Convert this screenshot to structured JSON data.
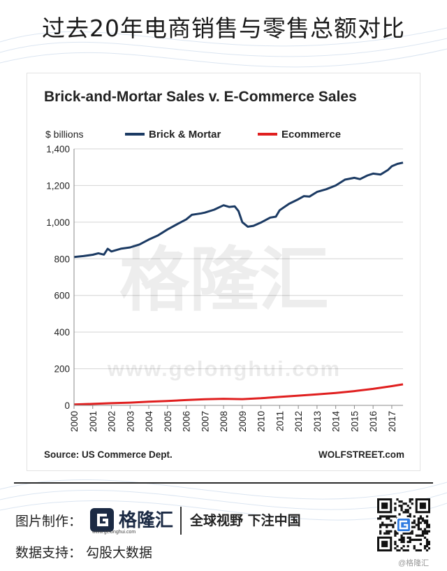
{
  "title": "过去20年电商销售与零售总额对比",
  "chart_data": {
    "type": "line",
    "title": "Brick-and-Mortar Sales v. E-Commerce Sales",
    "ylabel": "$ billions",
    "xlabel": "",
    "ylim": [
      0,
      1400
    ],
    "yticks": [
      "0",
      "200",
      "400",
      "600",
      "800",
      "1,000",
      "1,200",
      "1,400"
    ],
    "xlim": [
      2000,
      2017.6
    ],
    "xticks": [
      "2000",
      "2001",
      "2002",
      "2003",
      "2004",
      "2005",
      "2006",
      "2007",
      "2008",
      "2009",
      "2010",
      "2011",
      "2012",
      "2013",
      "2014",
      "2015",
      "2016",
      "2017"
    ],
    "grid": true,
    "legend": "top",
    "series": [
      {
        "name": "Brick & Mortar",
        "color": "#1b3a63",
        "points": [
          [
            2000,
            810
          ],
          [
            2000.5,
            815
          ],
          [
            2001,
            822
          ],
          [
            2001.3,
            830
          ],
          [
            2001.6,
            823
          ],
          [
            2001.8,
            855
          ],
          [
            2002,
            840
          ],
          [
            2002.5,
            855
          ],
          [
            2003,
            862
          ],
          [
            2003.5,
            878
          ],
          [
            2004,
            905
          ],
          [
            2004.5,
            928
          ],
          [
            2005,
            960
          ],
          [
            2005.5,
            988
          ],
          [
            2006,
            1015
          ],
          [
            2006.3,
            1040
          ],
          [
            2006.8,
            1048
          ],
          [
            2007,
            1052
          ],
          [
            2007.5,
            1068
          ],
          [
            2008,
            1092
          ],
          [
            2008.3,
            1083
          ],
          [
            2008.6,
            1086
          ],
          [
            2008.8,
            1060
          ],
          [
            2009,
            1000
          ],
          [
            2009.3,
            975
          ],
          [
            2009.6,
            980
          ],
          [
            2010,
            998
          ],
          [
            2010.5,
            1025
          ],
          [
            2010.8,
            1030
          ],
          [
            2011,
            1065
          ],
          [
            2011.5,
            1100
          ],
          [
            2012,
            1125
          ],
          [
            2012.3,
            1142
          ],
          [
            2012.6,
            1140
          ],
          [
            2013,
            1165
          ],
          [
            2013.5,
            1180
          ],
          [
            2014,
            1200
          ],
          [
            2014.5,
            1232
          ],
          [
            2015,
            1242
          ],
          [
            2015.3,
            1235
          ],
          [
            2015.7,
            1255
          ],
          [
            2016,
            1265
          ],
          [
            2016.4,
            1260
          ],
          [
            2016.8,
            1285
          ],
          [
            2017,
            1305
          ],
          [
            2017.3,
            1318
          ],
          [
            2017.6,
            1325
          ]
        ]
      },
      {
        "name": "Ecommerce",
        "color": "#e01f1f",
        "points": [
          [
            2000,
            5
          ],
          [
            2001,
            8
          ],
          [
            2002,
            12
          ],
          [
            2003,
            15
          ],
          [
            2004,
            20
          ],
          [
            2005,
            24
          ],
          [
            2006,
            29
          ],
          [
            2007,
            33
          ],
          [
            2008,
            36
          ],
          [
            2009,
            34
          ],
          [
            2010,
            39
          ],
          [
            2011,
            46
          ],
          [
            2012,
            53
          ],
          [
            2013,
            60
          ],
          [
            2014,
            68
          ],
          [
            2015,
            78
          ],
          [
            2016,
            90
          ],
          [
            2017,
            105
          ],
          [
            2017.6,
            115
          ]
        ]
      }
    ],
    "annotations": {
      "source": "Source: US Commerce Dept.",
      "credit": "WOLFSTREET.com"
    }
  },
  "watermark": {
    "text_cn": "格隆汇",
    "text_url": "www.gelonghui.com"
  },
  "footer": {
    "credit_label": "图片制作：",
    "logo_name": "格隆汇",
    "logo_url": "www.gelonghui.com",
    "slogan": "全球视野 下注中国",
    "support_label": "数据支持：  勾股大数据",
    "qr_caption": "@格隆汇",
    "brand_color": "#1b2a44"
  }
}
